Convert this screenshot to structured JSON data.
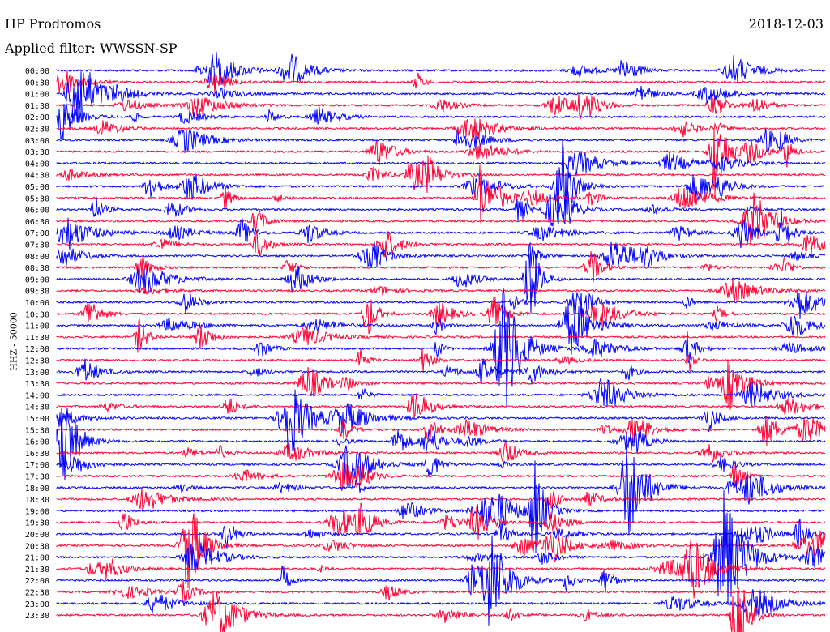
{
  "header": {
    "station": "HP Prodromos",
    "filter": "Applied filter: WWSSN-SP",
    "date": "2018-12-03",
    "channel": "HHZ - 50000"
  },
  "chart_data": {
    "type": "line",
    "title": "HP Prodromos",
    "subtitle": "Applied filter: WWSSN-SP",
    "ylabel": "HHZ - 50000",
    "row_labels": [
      "00:00",
      "00:30",
      "01:00",
      "01:30",
      "02:00",
      "02:30",
      "03:00",
      "03:30",
      "04:00",
      "04:30",
      "05:00",
      "05:30",
      "06:00",
      "06:30",
      "07:00",
      "07:30",
      "08:00",
      "08:30",
      "09:00",
      "09:30",
      "10:00",
      "10:30",
      "11:00",
      "11:30",
      "12:00",
      "12:30",
      "13:00",
      "13:30",
      "14:00",
      "14:30",
      "15:00",
      "15:30",
      "16:00",
      "16:30",
      "17:00",
      "17:30",
      "18:00",
      "18:30",
      "19:00",
      "19:30",
      "20:00",
      "20:30",
      "21:00",
      "21:30",
      "22:00",
      "22:30",
      "23:00",
      "23:30"
    ],
    "row_interval_minutes": 30,
    "series_colors": [
      "#0000ff",
      "#ff0033"
    ],
    "grid": false
  }
}
